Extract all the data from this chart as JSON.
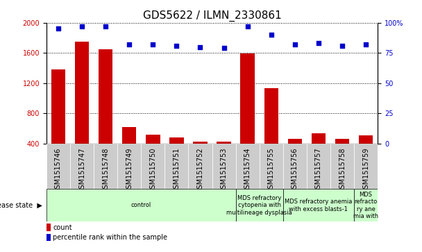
{
  "title": "GDS5622 / ILMN_2330861",
  "samples": [
    "GSM1515746",
    "GSM1515747",
    "GSM1515748",
    "GSM1515749",
    "GSM1515750",
    "GSM1515751",
    "GSM1515752",
    "GSM1515753",
    "GSM1515754",
    "GSM1515755",
    "GSM1515756",
    "GSM1515757",
    "GSM1515758",
    "GSM1515759"
  ],
  "counts": [
    1380,
    1750,
    1650,
    620,
    520,
    480,
    430,
    430,
    1590,
    1130,
    460,
    540,
    460,
    510
  ],
  "percentiles": [
    95,
    97,
    97,
    82,
    82,
    81,
    80,
    79,
    97,
    90,
    82,
    83,
    81,
    82
  ],
  "ylim_left": [
    400,
    2000
  ],
  "ylim_right": [
    0,
    100
  ],
  "yticks_left": [
    400,
    800,
    1200,
    1600,
    2000
  ],
  "yticks_right": [
    0,
    25,
    50,
    75,
    100
  ],
  "bar_color": "#cc0000",
  "dot_color": "#0000cc",
  "grid_color": "#000000",
  "bg_color": "#ffffff",
  "disease_states": [
    {
      "label": "control",
      "start": 0,
      "end": 8,
      "color": "#ccffcc"
    },
    {
      "label": "MDS refractory\ncytopenia with\nmultilineage dysplasia",
      "start": 8,
      "end": 10,
      "color": "#ccffcc"
    },
    {
      "label": "MDS refractory anemia\nwith excess blasts-1",
      "start": 10,
      "end": 13,
      "color": "#ccffcc"
    },
    {
      "label": "MDS\nrefracto\nry ane\nmia with",
      "start": 13,
      "end": 14,
      "color": "#ccffcc"
    }
  ],
  "tick_label_bg": "#cccccc",
  "legend_count_color": "#cc0000",
  "legend_dot_color": "#0000cc",
  "title_fontsize": 11,
  "tick_fontsize": 7,
  "ds_fontsize": 6,
  "legend_fontsize": 7
}
